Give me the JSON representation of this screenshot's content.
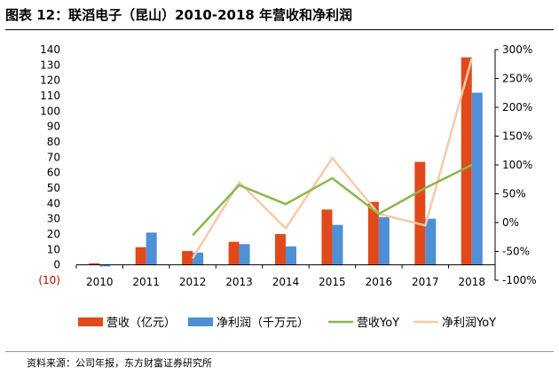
{
  "title": "图表 12：联滔电子（昆山）2010-2018 年营收和净利润",
  "source": "资料来源：公司年报，东方财富证券研究所",
  "colors": {
    "revenue": "#E04A1B",
    "profit": "#4F8FD6",
    "revenue_yoy": "#8AB84A",
    "profit_yoy": "#F9C9A8"
  },
  "chart_data": {
    "type": "bar",
    "categories": [
      "2010",
      "2011",
      "2012",
      "2013",
      "2014",
      "2015",
      "2016",
      "2017",
      "2018"
    ],
    "series": [
      {
        "name": "营收（亿元）",
        "type": "bar",
        "axis": "left",
        "values": [
          1,
          11.5,
          9,
          15,
          20,
          36,
          41,
          67,
          135
        ]
      },
      {
        "name": "净利润（千万元）",
        "type": "bar",
        "axis": "left",
        "values": [
          -1,
          21,
          8,
          13.5,
          12,
          26,
          31,
          30,
          112
        ]
      },
      {
        "name": "营收YoY",
        "type": "line",
        "axis": "right",
        "values": [
          null,
          null,
          -22,
          65,
          32,
          77,
          15,
          60,
          100
        ]
      },
      {
        "name": "净利润YoY",
        "type": "line",
        "axis": "right",
        "values": [
          null,
          null,
          -62,
          70,
          -10,
          112,
          15,
          -5,
          285
        ]
      }
    ],
    "left_axis": {
      "min": -10,
      "max": 140,
      "ticks": [
        "(10)",
        "0",
        "10",
        "20",
        "30",
        "40",
        "50",
        "60",
        "70",
        "80",
        "90",
        "100",
        "110",
        "120",
        "130",
        "140"
      ]
    },
    "right_axis": {
      "min": -100,
      "max": 300,
      "ticks": [
        "-100%",
        "-50%",
        "0%",
        "50%",
        "100%",
        "150%",
        "200%",
        "250%",
        "300%"
      ]
    },
    "legend": [
      "营收（亿元）",
      "净利润（千万元）",
      "营收YoY",
      "净利润YoY"
    ]
  }
}
